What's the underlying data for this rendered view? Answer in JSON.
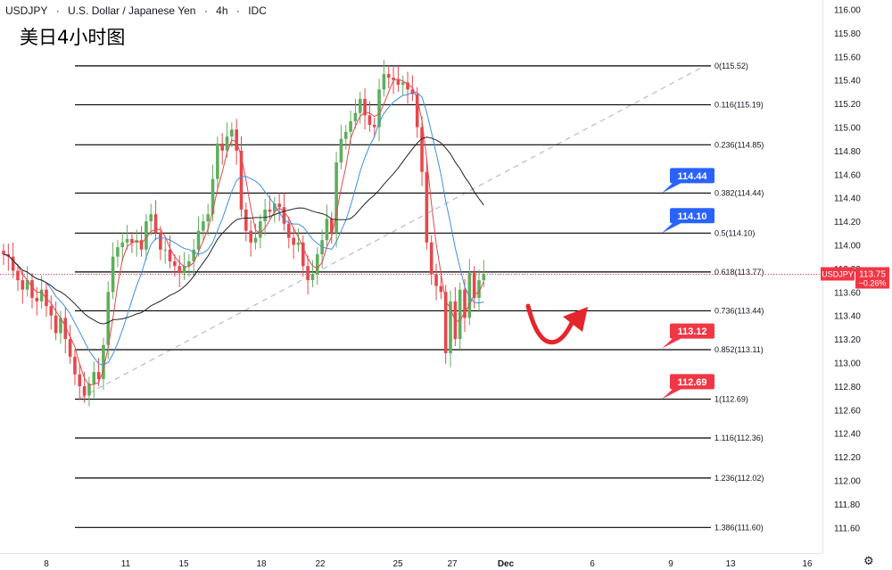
{
  "header": {
    "symbol": "USDJPY",
    "name": "U.S. Dollar / Japanese Yen",
    "interval": "4h",
    "source": "IDC"
  },
  "subtitle": "美日4小时图",
  "colors": {
    "up": "#5fae5c",
    "down": "#e5484d",
    "fib_line": "#000000",
    "ma_red": "#e5484d",
    "ma_blue": "#3d8fe0",
    "ma_black": "#222222",
    "trend_dash": "#b7bcc6",
    "label_blue": "#2962ff",
    "label_red": "#f23645",
    "price_line": "#f23645",
    "arrow": "#e4262c"
  },
  "chart_data": {
    "type": "candlestick",
    "y_axis": {
      "range": [
        111.4,
        116.1
      ],
      "ticks": [
        "116.00",
        "115.80",
        "115.60",
        "115.40",
        "115.20",
        "115.00",
        "114.80",
        "114.60",
        "114.40",
        "114.20",
        "114.00",
        "113.80",
        "113.60",
        "113.40",
        "113.20",
        "113.00",
        "112.80",
        "112.60",
        "112.40",
        "112.20",
        "112.00",
        "111.80",
        "111.60"
      ]
    },
    "x_axis": {
      "ticks": [
        "8",
        "11",
        "15",
        "18",
        "22",
        "25",
        "27",
        "Dec",
        "6",
        "9",
        "13",
        "16"
      ]
    },
    "fib_levels": [
      {
        "label": "0(115.52)",
        "value": 115.52
      },
      {
        "label": "0.116(115.19)",
        "value": 115.19
      },
      {
        "label": "0.236(114.85)",
        "value": 114.85
      },
      {
        "label": "0.382(114.44)",
        "value": 114.44
      },
      {
        "label": "0.5(114.10)",
        "value": 114.1
      },
      {
        "label": "0.618(113.77)",
        "value": 113.77
      },
      {
        "label": "0.736(113.44)",
        "value": 113.44
      },
      {
        "label": "0.852(113.11)",
        "value": 113.11
      },
      {
        "label": "1(112.69)",
        "value": 112.69
      },
      {
        "label": "1.116(112.36)",
        "value": 112.36
      },
      {
        "label": "1.236(112.02)",
        "value": 112.02
      },
      {
        "label": "1.386(111.60)",
        "value": 111.6
      }
    ],
    "price_labels": [
      {
        "text": "114.44",
        "value": 114.44,
        "color": "blue"
      },
      {
        "text": "114.10",
        "value": 114.1,
        "color": "blue"
      },
      {
        "text": "113.12",
        "value": 113.12,
        "color": "red"
      },
      {
        "text": "112.69",
        "value": 112.69,
        "color": "red"
      }
    ],
    "current_price": {
      "symbol": "USDJPY",
      "price": "113.75",
      "change": "−0.26%",
      "value": 113.75
    },
    "trend_line": {
      "from": 112.7,
      "to": 115.52
    },
    "closes": [
      113.92,
      113.9,
      113.78,
      113.7,
      113.62,
      113.7,
      113.55,
      113.52,
      113.62,
      113.48,
      113.4,
      113.25,
      113.38,
      113.2,
      113.05,
      112.9,
      112.8,
      112.72,
      112.82,
      112.92,
      112.86,
      113.15,
      113.6,
      113.9,
      113.98,
      114.02,
      114.05,
      114.02,
      114.04,
      113.96,
      114.2,
      114.26,
      114.1,
      113.96,
      113.96,
      113.86,
      113.82,
      113.76,
      113.82,
      113.86,
      113.96,
      114.12,
      114.2,
      114.26,
      114.56,
      114.86,
      114.8,
      114.92,
      114.98,
      114.8,
      114.3,
      114.12,
      114.02,
      114.06,
      114.2,
      114.3,
      114.28,
      114.35,
      114.32,
      114.18,
      114.06,
      114.0,
      114.02,
      113.82,
      113.7,
      113.75,
      113.92,
      114.04,
      114.22,
      114.1,
      114.7,
      114.9,
      114.96,
      115.05,
      115.12,
      115.24,
      115.1,
      115.02,
      115.0,
      115.32,
      115.45,
      115.42,
      115.4,
      115.36,
      115.38,
      115.32,
      115.28,
      115.0,
      114.62,
      114.02,
      113.75,
      113.65,
      113.6,
      113.08,
      113.52,
      113.2,
      113.62,
      113.38,
      113.76,
      113.55,
      113.7,
      113.75
    ]
  },
  "annotation": {
    "arrow_meaning": "rebound arrow"
  }
}
